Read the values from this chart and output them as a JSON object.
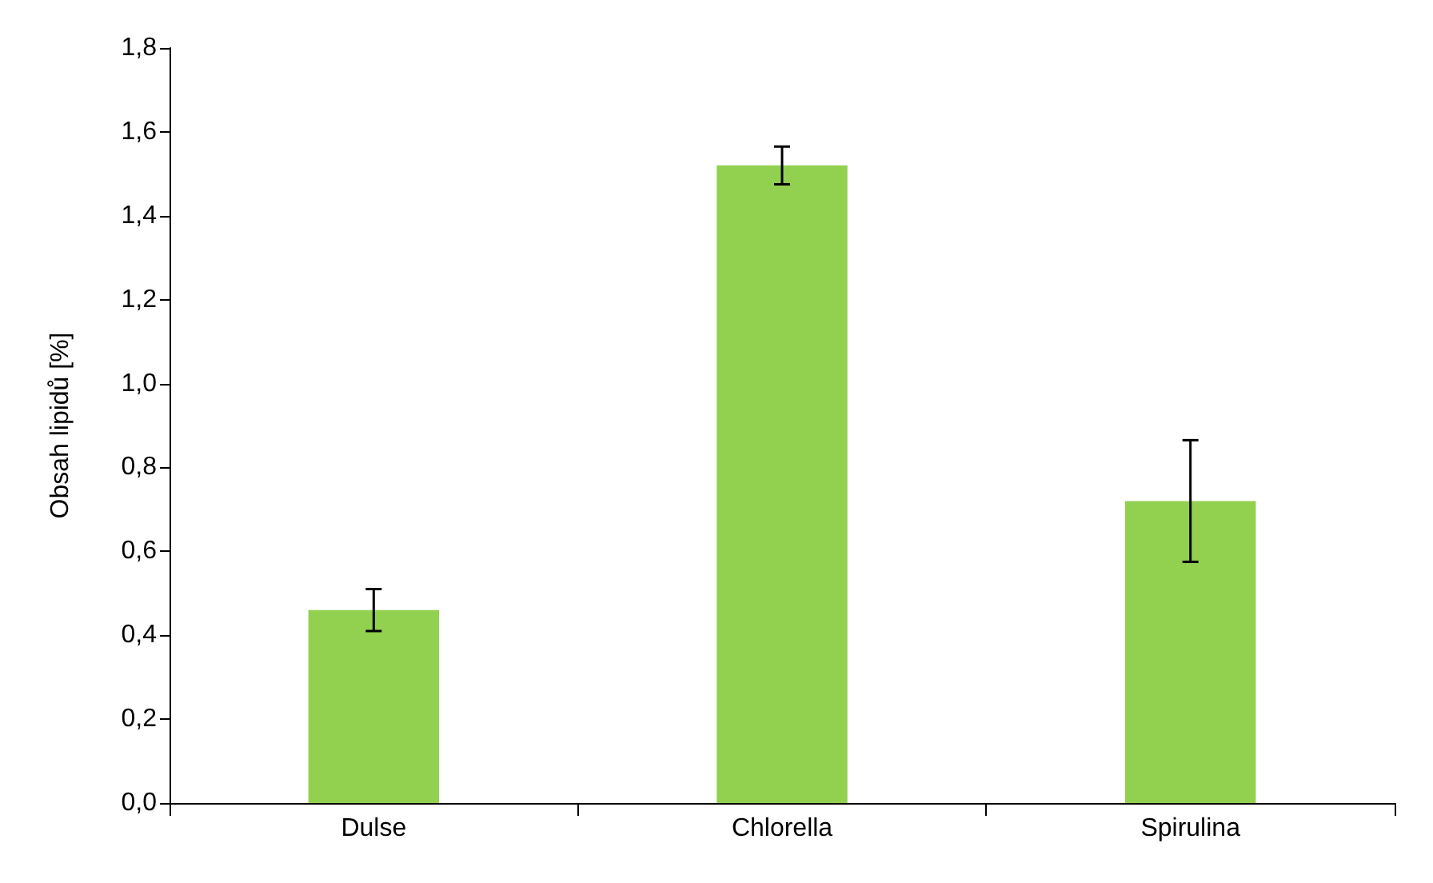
{
  "chart_data": {
    "type": "bar",
    "ylabel": "Obsah lipidů [%]",
    "categories": [
      "Dulse",
      "Chlorella",
      "Spirulina"
    ],
    "values": [
      0.46,
      1.52,
      0.72
    ],
    "color": "#92d050",
    "errors": [
      0.05,
      0.045,
      0.145
    ],
    "ylim": [
      0,
      1.8
    ],
    "yticks": [
      {
        "value": 0,
        "label": "0,0"
      },
      {
        "value": 0.2,
        "label": "0,2"
      },
      {
        "value": 0.4,
        "label": "0,4"
      },
      {
        "value": 0.6,
        "label": "0,6"
      },
      {
        "value": 0.8,
        "label": "0,8"
      },
      {
        "value": 1.0,
        "label": "1,0"
      },
      {
        "value": 1.2,
        "label": "1,2"
      },
      {
        "value": 1.4,
        "label": "1,4"
      },
      {
        "value": 1.6,
        "label": "1,6"
      },
      {
        "value": 1.8,
        "label": "1,8"
      }
    ],
    "grid": false
  }
}
